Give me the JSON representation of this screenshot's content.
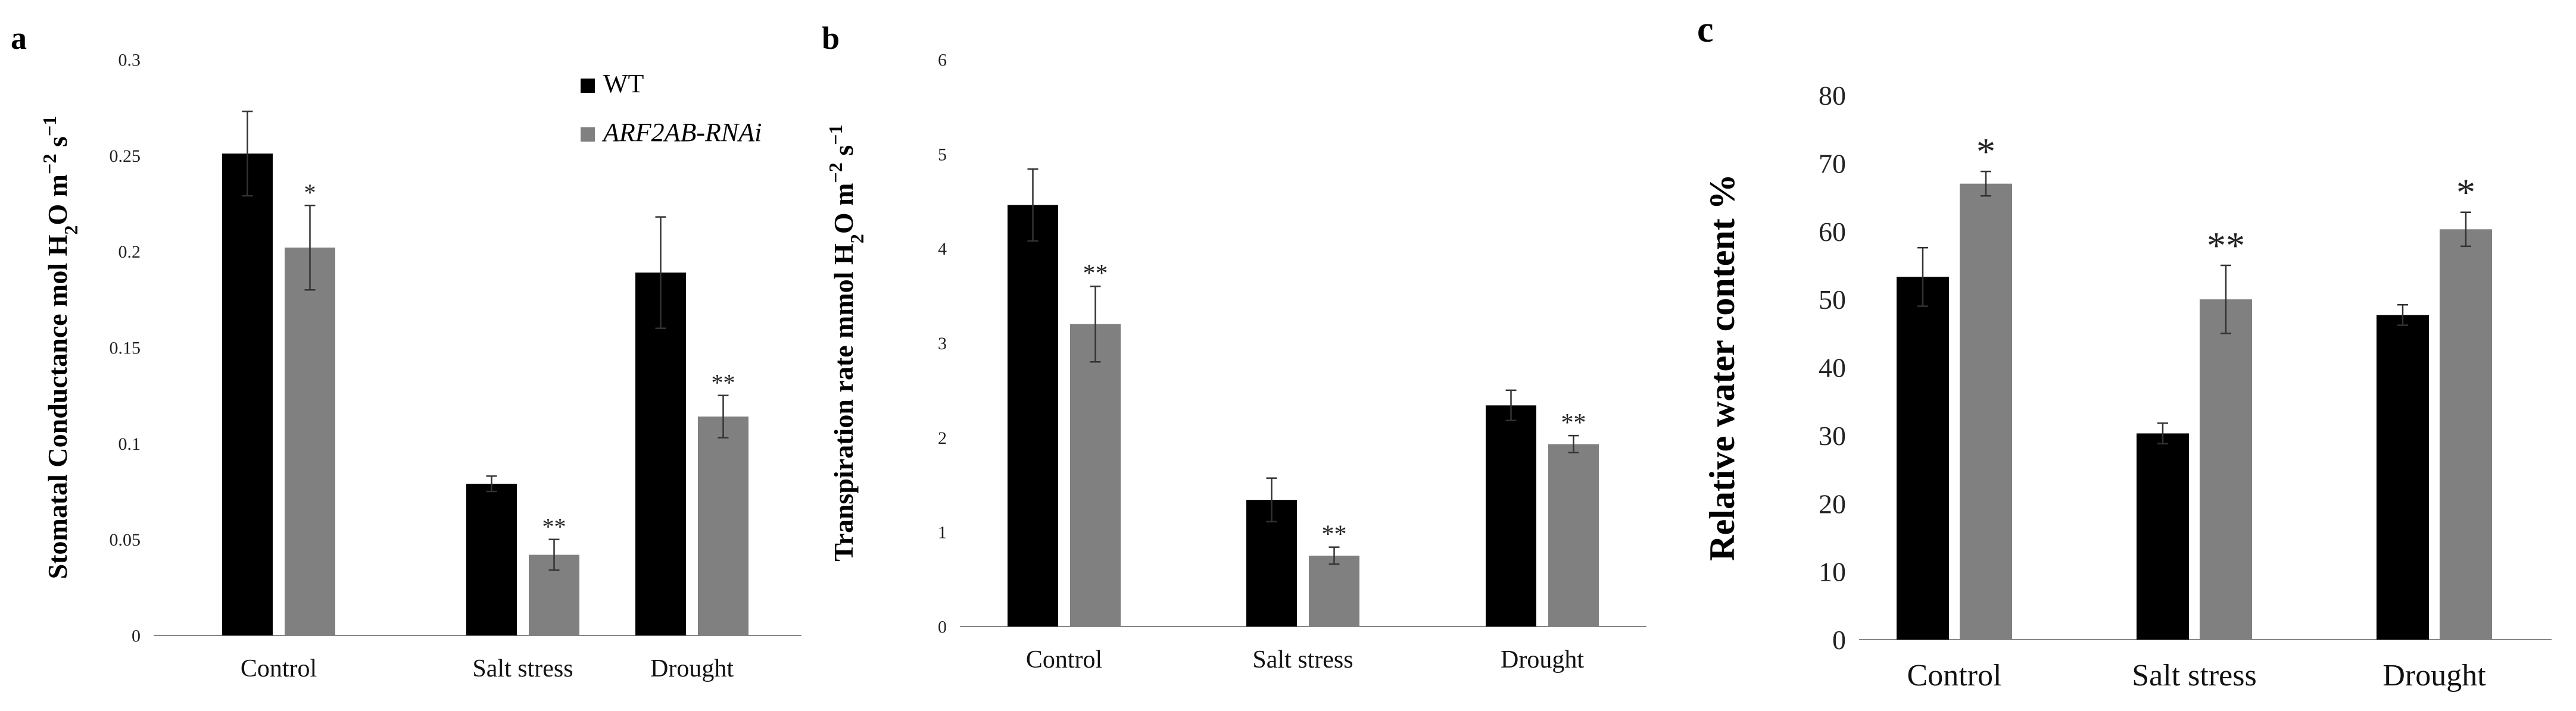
{
  "colors": {
    "wt": "#000000",
    "rnai": "#808080",
    "axis": "#888888",
    "err": "#333333"
  },
  "chart_data": [
    {
      "panel_label": "a",
      "type": "bar",
      "title": "",
      "ylabel_parts": [
        "Stomatal Conductance mol H",
        "2",
        "O m",
        "−2",
        " s",
        "−1"
      ],
      "xlabel": "",
      "ylim": [
        0,
        0.3
      ],
      "yticks": [
        0,
        0.05,
        0.1,
        0.15,
        0.2,
        0.25,
        0.3
      ],
      "ytick_labels": [
        "0",
        "0.05",
        "0.1",
        "0.15",
        "0.2",
        "0.25",
        "0.3"
      ],
      "categories": [
        "Control",
        "Salt stress",
        "Drought"
      ],
      "legend": {
        "position": "top-right",
        "entries": [
          "WT",
          "ARF2AB-RNAi"
        ]
      },
      "series": [
        {
          "name": "WT",
          "values": [
            0.251,
            0.079,
            0.189
          ],
          "errors": [
            0.022,
            0.004,
            0.029
          ],
          "sig": [
            "",
            "",
            ""
          ]
        },
        {
          "name": "ARF2AB-RNAi",
          "values": [
            0.202,
            0.042,
            0.114
          ],
          "errors": [
            0.022,
            0.008,
            0.011
          ],
          "sig": [
            "*",
            "**",
            "**"
          ]
        }
      ]
    },
    {
      "panel_label": "b",
      "type": "bar",
      "title": "",
      "ylabel_parts": [
        "Transpiration rate mmol H",
        "2",
        "O m",
        "−2",
        " s",
        "−1"
      ],
      "xlabel": "",
      "ylim": [
        0,
        6
      ],
      "yticks": [
        0,
        1,
        2,
        3,
        4,
        5,
        6
      ],
      "ytick_labels": [
        "0",
        "1",
        "2",
        "3",
        "4",
        "5",
        "6"
      ],
      "categories": [
        "Control",
        "Salt stress",
        "Drought"
      ],
      "series": [
        {
          "name": "WT",
          "values": [
            4.46,
            1.34,
            2.34
          ],
          "errors": [
            0.38,
            0.23,
            0.16
          ],
          "sig": [
            "",
            "",
            ""
          ]
        },
        {
          "name": "ARF2AB-RNAi",
          "values": [
            3.2,
            0.75,
            1.93
          ],
          "errors": [
            0.4,
            0.09,
            0.09
          ],
          "sig": [
            "**",
            "**",
            "**"
          ]
        }
      ]
    },
    {
      "panel_label": "c",
      "type": "bar",
      "title": "",
      "ylabel_parts": [
        "Relative water content %"
      ],
      "xlabel": "",
      "ylim": [
        0,
        80
      ],
      "yticks": [
        0,
        10,
        20,
        30,
        40,
        50,
        60,
        70,
        80
      ],
      "ytick_labels": [
        "0",
        "10",
        "20",
        "30",
        "40",
        "50",
        "60",
        "70",
        "80"
      ],
      "categories": [
        "Control",
        "Salt stress",
        "Drought"
      ],
      "series": [
        {
          "name": "WT",
          "values": [
            53.3,
            30.3,
            47.7
          ],
          "errors": [
            4.3,
            1.5,
            1.5
          ],
          "sig": [
            "",
            "",
            ""
          ]
        },
        {
          "name": "ARF2AB-RNAi",
          "values": [
            67.0,
            50.0,
            60.3
          ],
          "errors": [
            1.8,
            5.0,
            2.5
          ],
          "sig": [
            "*",
            "**",
            "*"
          ]
        }
      ]
    }
  ]
}
